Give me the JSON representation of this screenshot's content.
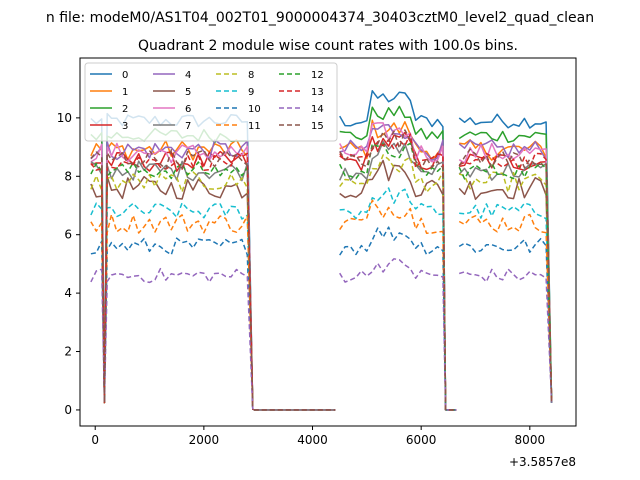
{
  "suptitle": "n file: modeM0/AS1T04_002T01_9000004374_30403cztM0_level2_quad_clean",
  "chart_data": {
    "type": "line",
    "title": "Quadrant 2 module wise count rates with 100.0s bins.",
    "xlabel": "",
    "ylabel": "",
    "x_offset_label": "+3.5857e8",
    "xlim": [
      -280,
      8850
    ],
    "ylim": [
      -0.55,
      12.05
    ],
    "xticks": [
      0,
      2000,
      4000,
      6000,
      8000
    ],
    "xtick_labels": [
      "0",
      "2000",
      "4000",
      "6000",
      "8000"
    ],
    "yticks": [
      0,
      2,
      4,
      6,
      8,
      10
    ],
    "ytick_labels": [
      "0",
      "2",
      "4",
      "6",
      "8",
      "10"
    ],
    "grid": false,
    "legend_position": "upper-left",
    "legend_columns": 4,
    "segments": [
      {
        "x": [
          -80,
          20,
          120,
          170,
          220,
          300,
          400,
          500,
          600,
          700,
          800,
          900,
          1000,
          1100,
          1200,
          1300,
          1400,
          1500,
          1600,
          1700,
          1800,
          1900,
          2000,
          2100,
          2200,
          2300,
          2400,
          2500,
          2600,
          2700,
          2800,
          2900
        ]
      },
      {
        "x": [
          2920,
          3420,
          3920,
          4420
        ]
      },
      {
        "x": [
          4500,
          4600,
          4700,
          4800,
          4900,
          5000,
          5100,
          5200,
          5300,
          5400,
          5500,
          5600,
          5700,
          5800,
          5900,
          6000,
          6100,
          6200,
          6300,
          6400,
          6450,
          6550,
          6650
        ]
      },
      {
        "x": [
          6700,
          6800,
          6900,
          7000,
          7100,
          7200,
          7300,
          7400,
          7500,
          7600,
          7700,
          7800,
          7900,
          8000,
          8100,
          8200,
          8300,
          8400
        ]
      }
    ],
    "series": [
      {
        "name": "0",
        "color": "#1f77b4",
        "dash": "solid",
        "base": 9.9,
        "noise": 0.25
      },
      {
        "name": "1",
        "color": "#ff7f0e",
        "dash": "solid",
        "base": 8.9,
        "noise": 0.35
      },
      {
        "name": "2",
        "color": "#2ca02c",
        "dash": "solid",
        "base": 9.4,
        "noise": 0.25
      },
      {
        "name": "3",
        "color": "#d62728",
        "dash": "solid",
        "base": 8.5,
        "noise": 0.35
      },
      {
        "name": "4",
        "color": "#9467bd",
        "dash": "solid",
        "base": 8.9,
        "noise": 0.35
      },
      {
        "name": "5",
        "color": "#8c564b",
        "dash": "solid",
        "base": 7.6,
        "noise": 0.4
      },
      {
        "name": "6",
        "color": "#e377c2",
        "dash": "solid",
        "base": 8.8,
        "noise": 0.35
      },
      {
        "name": "7",
        "color": "#7f7f7f",
        "dash": "solid",
        "base": 8.2,
        "noise": 0.35
      },
      {
        "name": "8",
        "color": "#bcbd22",
        "dash": "dashed",
        "base": 7.8,
        "noise": 0.35
      },
      {
        "name": "9",
        "color": "#17becf",
        "dash": "dashed",
        "base": 6.8,
        "noise": 0.3
      },
      {
        "name": "10",
        "color": "#1f77b4",
        "dash": "dashed",
        "base": 5.6,
        "noise": 0.3
      },
      {
        "name": "11",
        "color": "#ff7f0e",
        "dash": "dashed",
        "base": 6.4,
        "noise": 0.35
      },
      {
        "name": "12",
        "color": "#2ca02c",
        "dash": "dashed",
        "base": 8.2,
        "noise": 0.3
      },
      {
        "name": "13",
        "color": "#d62728",
        "dash": "dashed",
        "base": 8.5,
        "noise": 0.3
      },
      {
        "name": "14",
        "color": "#9467bd",
        "dash": "dashed",
        "base": 4.6,
        "noise": 0.25
      },
      {
        "name": "15",
        "color": "#8c564b",
        "dash": "dashed",
        "base": 8.6,
        "noise": 0.35
      }
    ]
  }
}
